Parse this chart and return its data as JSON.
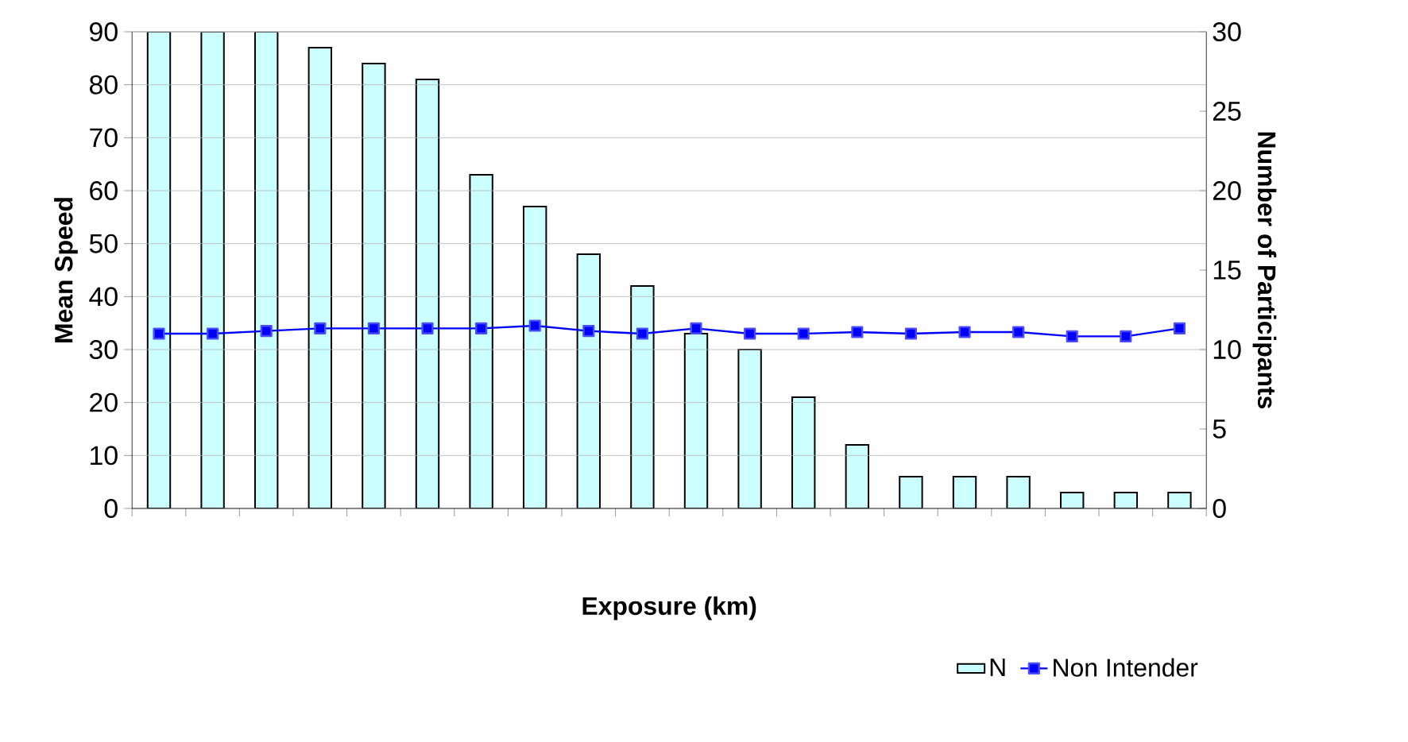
{
  "chart_data": {
    "type": "bar",
    "xlabel": "Exposure (km)",
    "ylabel": "Mean Speed",
    "y2label": "Number of Participants",
    "categories": [
      null,
      null,
      null,
      null,
      null,
      null,
      null,
      null,
      null,
      null,
      null,
      null,
      null,
      null,
      null,
      null,
      null,
      null,
      null,
      null
    ],
    "series": [
      {
        "name": "N",
        "axis": "y2",
        "color": "#ccffff",
        "values": [
          30,
          30,
          30,
          29,
          28,
          27,
          21,
          19,
          16,
          14,
          11,
          10,
          7,
          4,
          2,
          2,
          2,
          1,
          1,
          1
        ]
      },
      {
        "name": "Non Intender",
        "type": "line",
        "color": "#0000ff",
        "marker": "square",
        "values": [
          33,
          33,
          33.5,
          34,
          34,
          34,
          34,
          34.5,
          33.5,
          33,
          34,
          33,
          33,
          33.3,
          33,
          33.3,
          33.3,
          32.5,
          32.5,
          34
        ]
      }
    ],
    "ylim": [
      0,
      90
    ],
    "yticks": [
      0,
      10,
      20,
      30,
      40,
      50,
      60,
      70,
      80,
      90
    ],
    "y2lim": [
      0,
      30
    ],
    "y2ticks": [
      0,
      5,
      10,
      15,
      20,
      25,
      30
    ],
    "grid": "y",
    "legend": "bottom right"
  }
}
